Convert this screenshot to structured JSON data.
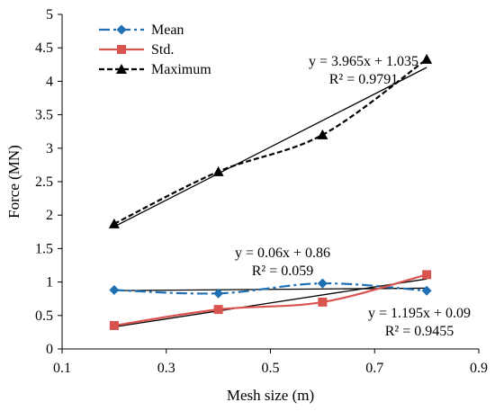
{
  "chart_data": {
    "type": "line",
    "xlabel": "Mesh size (m)",
    "ylabel": "Force (MN)",
    "xlim": [
      0.1,
      0.9
    ],
    "ylim": [
      0,
      5
    ],
    "xticks": [
      0.1,
      0.3,
      0.5,
      0.7,
      0.9
    ],
    "xtick_labels": [
      "0.1",
      "0.3",
      "0.5",
      "0.7",
      "0.9"
    ],
    "yticks": [
      0,
      0.5,
      1,
      1.5,
      2,
      2.5,
      3,
      3.5,
      4,
      4.5,
      5
    ],
    "ytick_labels": [
      "0",
      "0.5",
      "1",
      "1.5",
      "2",
      "2.5",
      "3",
      "3.5",
      "4",
      "4.5",
      "5"
    ],
    "grid": false,
    "legend_position": "top-left",
    "x": [
      0.2,
      0.4,
      0.6,
      0.8
    ],
    "series": [
      {
        "name": "Mean",
        "values": [
          0.88,
          0.83,
          0.98,
          0.87
        ],
        "color": "#1f6fb4",
        "marker": "diamond",
        "line": "dash-dot"
      },
      {
        "name": "Std.",
        "values": [
          0.35,
          0.59,
          0.7,
          1.11
        ],
        "color": "#d9534f",
        "marker": "square",
        "line": "solid"
      },
      {
        "name": "Maximum",
        "values": [
          1.87,
          2.65,
          3.2,
          4.33
        ],
        "color": "#000000",
        "marker": "triangle",
        "line": "dashed"
      }
    ],
    "trendlines": [
      {
        "series": "Mean",
        "slope": 0.06,
        "intercept": 0.86,
        "equation": "y = 0.06x + 0.86",
        "r2": "R² = 0.059"
      },
      {
        "series": "Std.",
        "slope": 1.195,
        "intercept": 0.09,
        "equation": "y = 1.195x + 0.09",
        "r2": "R² = 0.9455"
      },
      {
        "series": "Maximum",
        "slope": 3.965,
        "intercept": 1.035,
        "equation": "y = 3.965x + 1.035",
        "r2": "R² = 0.9791"
      }
    ]
  }
}
